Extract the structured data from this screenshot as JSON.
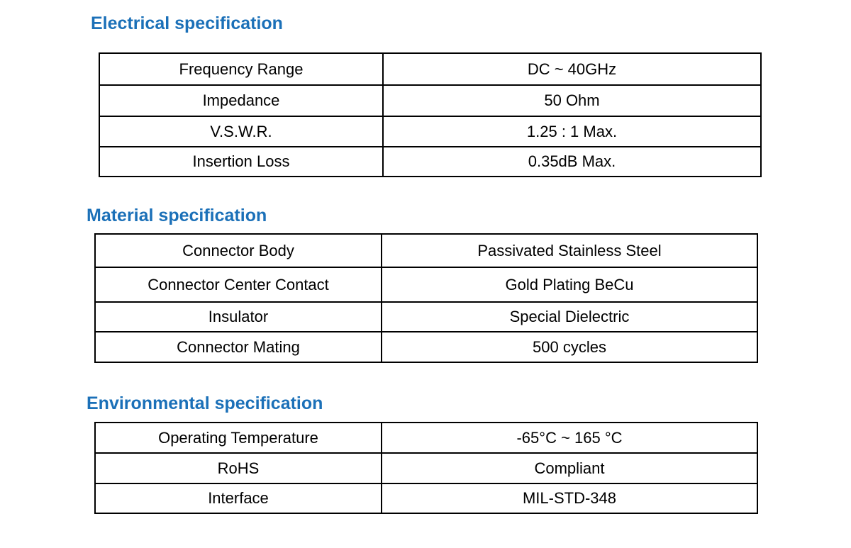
{
  "sections": [
    {
      "title": "Electrical specification",
      "rows": [
        [
          "Frequency Range",
          "DC ~ 40GHz"
        ],
        [
          "Impedance",
          "50 Ohm"
        ],
        [
          "V.S.W.R.",
          "1.25 : 1 Max."
        ],
        [
          "Insertion Loss",
          "0.35dB Max."
        ]
      ]
    },
    {
      "title": "Material specification",
      "rows": [
        [
          "Connector Body",
          "Passivated Stainless Steel"
        ],
        [
          "Connector Center Contact",
          "Gold Plating BeCu"
        ],
        [
          "Insulator",
          "Special Dielectric"
        ],
        [
          "Connector Mating",
          "500 cycles"
        ]
      ]
    },
    {
      "title": "Environmental specification",
      "rows": [
        [
          "Operating Temperature",
          "-65°C ~ 165 °C"
        ],
        [
          "RoHS",
          "Compliant"
        ],
        [
          "Interface",
          "MIL-STD-348"
        ]
      ]
    }
  ]
}
